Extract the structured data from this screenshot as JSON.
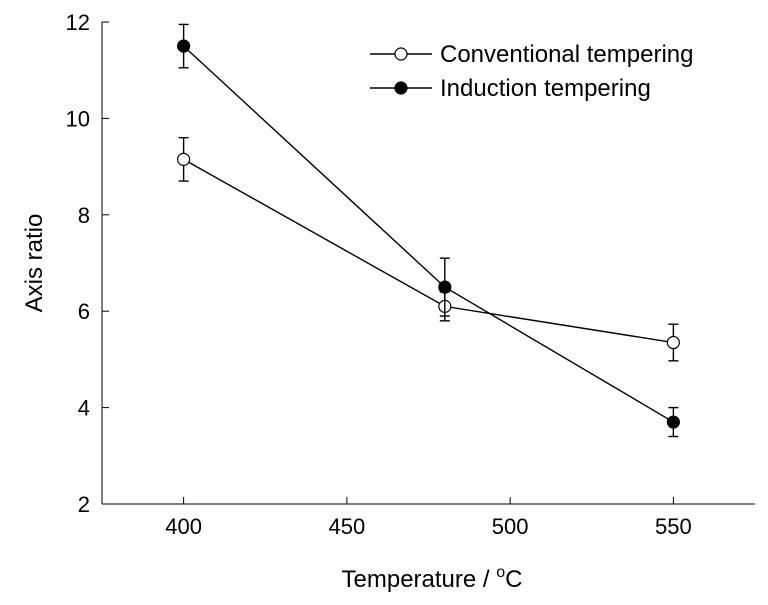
{
  "chart_data": {
    "type": "line",
    "xlabel": "Temperature / ",
    "xlabel_unit_sup": "o",
    "xlabel_unit": "C",
    "ylabel": "Axis ratio",
    "xlim": [
      375,
      575
    ],
    "ylim": [
      2,
      12
    ],
    "xticks": [
      400,
      450,
      500,
      550
    ],
    "yticks": [
      2,
      4,
      6,
      8,
      10,
      12
    ],
    "legend_position": "top-right",
    "series": [
      {
        "name": "Conventional tempering",
        "marker": "open-circle",
        "x": [
          400,
          480,
          550
        ],
        "y": [
          9.15,
          6.1,
          5.35
        ],
        "err": [
          0.45,
          0.3,
          0.38
        ]
      },
      {
        "name": "Induction tempering",
        "marker": "filled-circle",
        "x": [
          400,
          480,
          550
        ],
        "y": [
          11.5,
          6.5,
          3.7
        ],
        "err": [
          0.45,
          0.6,
          0.3
        ]
      }
    ]
  }
}
